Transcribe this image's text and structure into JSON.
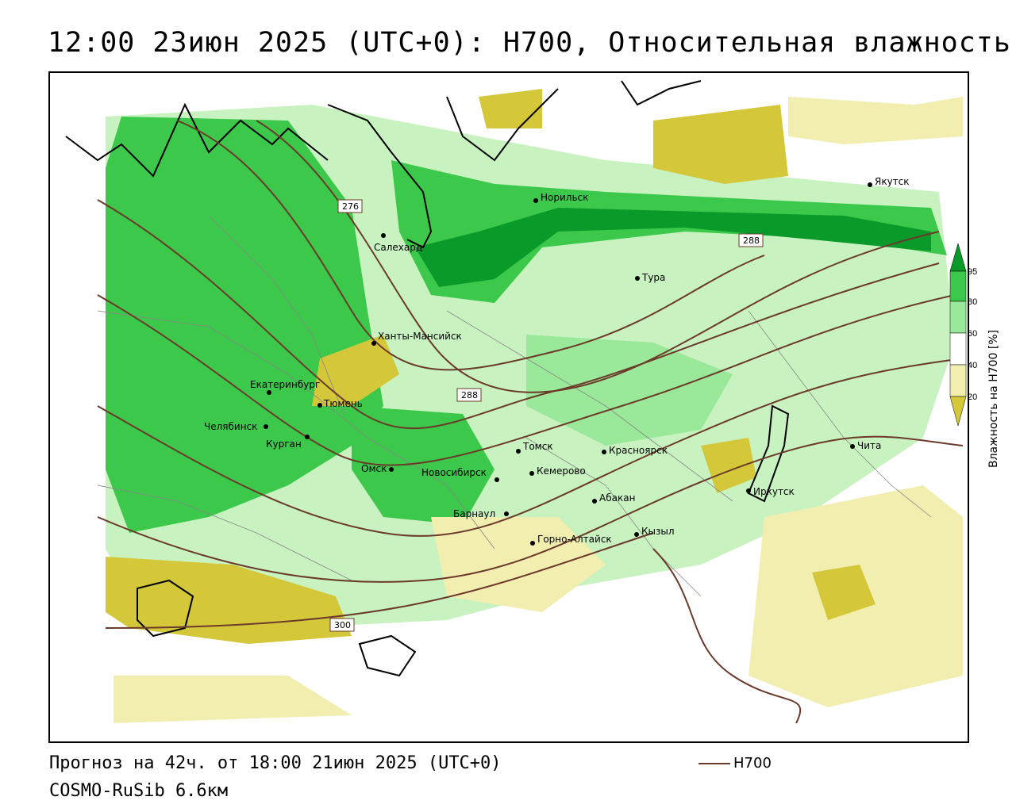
{
  "header": {
    "title": "12:00 23июн 2025 (UTC+0): H700, Относительная влажность"
  },
  "map": {
    "cities": [
      {
        "name": "Норильск"
      },
      {
        "name": "Якутск"
      },
      {
        "name": "Салехард"
      },
      {
        "name": "Тура"
      },
      {
        "name": "Ханты-Мансийск"
      },
      {
        "name": "Екатеринбург"
      },
      {
        "name": "Тюмень"
      },
      {
        "name": "Челябинск"
      },
      {
        "name": "Курган"
      },
      {
        "name": "Омск"
      },
      {
        "name": "Новосибирск"
      },
      {
        "name": "Томск"
      },
      {
        "name": "Кемерово"
      },
      {
        "name": "Красноярск"
      },
      {
        "name": "Барнаул"
      },
      {
        "name": "Абакан"
      },
      {
        "name": "Горно-Алтайск"
      },
      {
        "name": "Кызыл"
      },
      {
        "name": "Иркутск"
      },
      {
        "name": "Чита"
      }
    ],
    "contour_labels": [
      "276",
      "288",
      "288",
      "300"
    ],
    "colors": {
      "dark_green": "#0a9a2a",
      "green": "#3cc84a",
      "light_green": "#9ae89a",
      "pale_green": "#c8f2c0",
      "yellow": "#d4c83a",
      "pale_yellow": "#f2eeb0",
      "contour": "#6b3a2a"
    }
  },
  "legend": {
    "ticks": [
      "95",
      "80",
      "60",
      "40",
      "20"
    ],
    "axis_label": "Влажность на H700 [%]"
  },
  "footer": {
    "forecast": "Прогноз на 42ч. от 18:00 21июн 2025 (UTC+0)",
    "model": "COSMO-RuSib 6.6км",
    "contour_key": "H700"
  }
}
